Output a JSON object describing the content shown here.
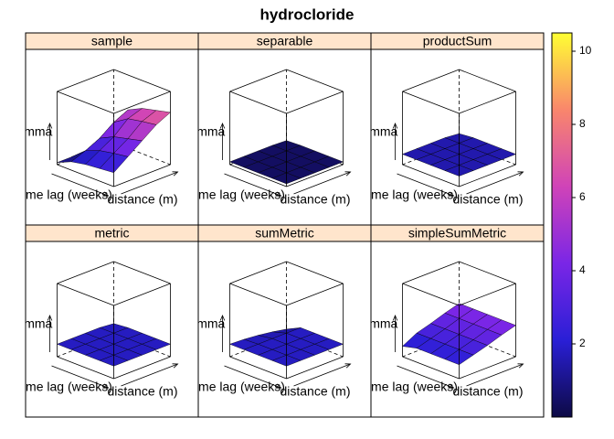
{
  "chart_data": {
    "type": "wireframe",
    "title": "hydrocloride",
    "xlabel": "distance (m)",
    "ylabel": "time lag (weeks)",
    "zlabel": "gamma",
    "zlim": [
      0,
      10.5
    ],
    "colorkey_ticks": [
      2,
      4,
      6,
      8,
      10
    ],
    "palette": [
      "#0d0a45",
      "#2a1fd6",
      "#7a26e6",
      "#d043b8",
      "#f9866c",
      "#ffff33"
    ],
    "panels": [
      {
        "name": "sample",
        "z": [
          [
            0.3,
            5.5,
            6.5,
            7.0,
            7.5
          ],
          [
            0.3,
            4.5,
            5.8,
            6.2,
            6.5
          ],
          [
            0.3,
            3.0,
            4.0,
            4.5,
            5.0
          ],
          [
            0.3,
            2.0,
            2.8,
            3.2,
            3.5
          ],
          [
            0.3,
            1.2,
            1.6,
            1.8,
            2.0
          ]
        ]
      },
      {
        "name": "separable",
        "z": [
          [
            0.3,
            0.4,
            0.4,
            0.4,
            0.4
          ],
          [
            0.4,
            0.4,
            0.4,
            0.4,
            0.4
          ],
          [
            0.4,
            0.4,
            0.4,
            0.4,
            0.4
          ],
          [
            0.4,
            0.4,
            0.4,
            0.4,
            0.4
          ],
          [
            0.4,
            0.4,
            0.4,
            0.4,
            0.4
          ]
        ]
      },
      {
        "name": "productSum",
        "z": [
          [
            1.3,
            1.5,
            1.5,
            1.5,
            1.5
          ],
          [
            1.5,
            1.5,
            1.5,
            1.5,
            1.5
          ],
          [
            1.5,
            1.5,
            1.5,
            1.5,
            1.5
          ],
          [
            1.5,
            1.5,
            1.5,
            1.5,
            1.5
          ],
          [
            1.5,
            1.5,
            1.5,
            1.5,
            1.5
          ]
        ]
      },
      {
        "name": "metric",
        "z": [
          [
            1.6,
            1.8,
            1.8,
            1.8,
            1.8
          ],
          [
            1.8,
            1.8,
            1.8,
            1.8,
            1.8
          ],
          [
            1.8,
            1.8,
            1.8,
            1.8,
            1.8
          ],
          [
            1.8,
            1.8,
            1.8,
            1.8,
            1.8
          ],
          [
            1.8,
            1.8,
            1.8,
            1.8,
            1.8
          ]
        ]
      },
      {
        "name": "sumMetric",
        "z": [
          [
            0.8,
            1.8,
            1.8,
            1.8,
            1.8
          ],
          [
            1.2,
            1.8,
            1.8,
            1.8,
            1.8
          ],
          [
            1.5,
            1.8,
            1.8,
            1.8,
            1.8
          ],
          [
            1.7,
            1.8,
            1.8,
            1.8,
            1.8
          ],
          [
            1.8,
            1.8,
            1.8,
            1.8,
            1.8
          ]
        ]
      },
      {
        "name": "simpleSumMetric",
        "z": [
          [
            4.5,
            4.5,
            4.5,
            4.5,
            4.5
          ],
          [
            3.9,
            3.9,
            3.9,
            3.9,
            3.9
          ],
          [
            3.2,
            3.2,
            3.2,
            3.2,
            3.2
          ],
          [
            2.6,
            2.6,
            2.6,
            2.6,
            2.6
          ],
          [
            1.5,
            2.0,
            2.0,
            2.0,
            2.0
          ]
        ]
      }
    ]
  }
}
